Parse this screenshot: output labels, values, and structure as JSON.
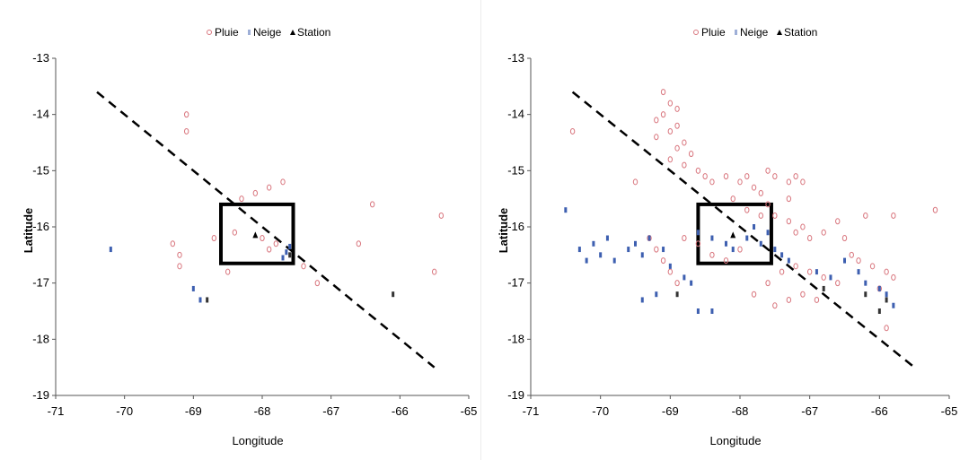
{
  "legend": {
    "rain_label": "Pluie",
    "snow_label": "Neige",
    "station_label": "Station"
  },
  "colors": {
    "rain": "#d9777f",
    "snow": "#3d5fb0",
    "station": "#000000",
    "dark_marker": "#333333",
    "dashed_line": "#000000",
    "box": "#000000"
  },
  "chart_data": [
    {
      "type": "scatter",
      "xlabel": "Longitude",
      "ylabel": "Latitude",
      "xlim": [
        -71,
        -65
      ],
      "ylim": [
        -19,
        -13
      ],
      "xticks": [
        "-71",
        "-70",
        "-69",
        "-68",
        "-67",
        "-66",
        "-65"
      ],
      "yticks": [
        "-13",
        "-14",
        "-15",
        "-16",
        "-17",
        "-18",
        "-19"
      ],
      "legend_position": "top",
      "grid": false,
      "dashed_line": {
        "from": [
          -70.4,
          -13.6
        ],
        "to": [
          -65.5,
          -18.5
        ]
      },
      "box": {
        "x": [
          -68.6,
          -67.55
        ],
        "y": [
          -16.65,
          -15.6
        ]
      },
      "series": [
        {
          "name": "Pluie",
          "marker": "circle",
          "points": [
            [
              -69.1,
              -14.0
            ],
            [
              -69.1,
              -14.3
            ],
            [
              -68.3,
              -15.5
            ],
            [
              -68.1,
              -15.4
            ],
            [
              -67.9,
              -15.3
            ],
            [
              -67.7,
              -15.2
            ],
            [
              -66.4,
              -15.6
            ],
            [
              -65.4,
              -15.8
            ],
            [
              -68.7,
              -16.2
            ],
            [
              -69.3,
              -16.3
            ],
            [
              -69.2,
              -16.5
            ],
            [
              -69.2,
              -16.7
            ],
            [
              -68.4,
              -16.1
            ],
            [
              -68.0,
              -16.2
            ],
            [
              -67.9,
              -16.4
            ],
            [
              -67.8,
              -16.3
            ],
            [
              -66.6,
              -16.3
            ],
            [
              -65.5,
              -16.8
            ],
            [
              -67.2,
              -17.0
            ],
            [
              -67.4,
              -16.7
            ],
            [
              -68.5,
              -16.8
            ]
          ]
        },
        {
          "name": "Neige",
          "marker": "cross",
          "points": [
            [
              -70.2,
              -16.4
            ],
            [
              -69.0,
              -17.1
            ],
            [
              -67.65,
              -16.45
            ],
            [
              -67.6,
              -16.35
            ],
            [
              -67.7,
              -16.55
            ],
            [
              -68.9,
              -17.3
            ]
          ]
        },
        {
          "name": "Station",
          "marker": "triangle",
          "points": [
            [
              -68.1,
              -16.15
            ]
          ]
        },
        {
          "name": "",
          "marker": "dark",
          "points": [
            [
              -66.1,
              -17.2
            ],
            [
              -68.8,
              -17.3
            ],
            [
              -67.6,
              -16.5
            ]
          ]
        }
      ]
    },
    {
      "type": "scatter",
      "xlabel": "Longitude",
      "ylabel": "Latitude",
      "xlim": [
        -71,
        -65
      ],
      "ylim": [
        -19,
        -13
      ],
      "xticks": [
        "-71",
        "-70",
        "-69",
        "-68",
        "-67",
        "-66",
        "-65"
      ],
      "yticks": [
        "-13",
        "-14",
        "-15",
        "-16",
        "-17",
        "-18",
        "-19"
      ],
      "legend_position": "top",
      "grid": false,
      "dashed_line": {
        "from": [
          -70.4,
          -13.6
        ],
        "to": [
          -65.5,
          -18.5
        ]
      },
      "box": {
        "x": [
          -68.6,
          -67.55
        ],
        "y": [
          -16.65,
          -15.6
        ]
      },
      "series": [
        {
          "name": "Pluie",
          "marker": "circle",
          "points": [
            [
              -69.1,
              -13.6
            ],
            [
              -69.0,
              -13.8
            ],
            [
              -68.9,
              -13.9
            ],
            [
              -69.1,
              -14.0
            ],
            [
              -69.2,
              -14.1
            ],
            [
              -68.9,
              -14.2
            ],
            [
              -69.0,
              -14.3
            ],
            [
              -69.2,
              -14.4
            ],
            [
              -68.8,
              -14.5
            ],
            [
              -68.9,
              -14.6
            ],
            [
              -68.7,
              -14.7
            ],
            [
              -69.0,
              -14.8
            ],
            [
              -68.8,
              -14.9
            ],
            [
              -68.6,
              -15.0
            ],
            [
              -68.5,
              -15.1
            ],
            [
              -68.4,
              -15.2
            ],
            [
              -68.2,
              -15.1
            ],
            [
              -68.0,
              -15.2
            ],
            [
              -67.8,
              -15.3
            ],
            [
              -67.9,
              -15.1
            ],
            [
              -67.6,
              -15.0
            ],
            [
              -67.5,
              -15.1
            ],
            [
              -67.3,
              -15.2
            ],
            [
              -67.2,
              -15.1
            ],
            [
              -67.1,
              -15.2
            ],
            [
              -67.7,
              -15.4
            ],
            [
              -67.6,
              -15.6
            ],
            [
              -67.3,
              -15.5
            ],
            [
              -68.1,
              -15.5
            ],
            [
              -67.9,
              -15.7
            ],
            [
              -67.7,
              -15.8
            ],
            [
              -67.5,
              -15.8
            ],
            [
              -67.3,
              -15.9
            ],
            [
              -67.2,
              -16.1
            ],
            [
              -67.1,
              -16.0
            ],
            [
              -67.0,
              -16.2
            ],
            [
              -66.8,
              -16.1
            ],
            [
              -66.6,
              -15.9
            ],
            [
              -66.5,
              -16.2
            ],
            [
              -66.4,
              -16.5
            ],
            [
              -66.3,
              -16.6
            ],
            [
              -66.1,
              -16.7
            ],
            [
              -65.9,
              -16.8
            ],
            [
              -65.8,
              -16.9
            ],
            [
              -66.2,
              -15.8
            ],
            [
              -65.8,
              -15.8
            ],
            [
              -65.2,
              -15.7
            ],
            [
              -66.0,
              -17.1
            ],
            [
              -66.6,
              -17.0
            ],
            [
              -66.8,
              -16.9
            ],
            [
              -67.0,
              -16.8
            ],
            [
              -67.2,
              -16.7
            ],
            [
              -67.4,
              -16.8
            ],
            [
              -67.6,
              -17.0
            ],
            [
              -67.8,
              -17.2
            ],
            [
              -67.5,
              -17.4
            ],
            [
              -67.3,
              -17.3
            ],
            [
              -67.1,
              -17.2
            ],
            [
              -66.9,
              -17.3
            ],
            [
              -69.5,
              -15.2
            ],
            [
              -69.3,
              -16.2
            ],
            [
              -69.2,
              -16.4
            ],
            [
              -69.1,
              -16.6
            ],
            [
              -69.0,
              -16.8
            ],
            [
              -68.9,
              -17.0
            ],
            [
              -68.8,
              -16.2
            ],
            [
              -68.6,
              -16.3
            ],
            [
              -68.4,
              -16.5
            ],
            [
              -68.2,
              -16.6
            ],
            [
              -68.0,
              -16.4
            ],
            [
              -65.9,
              -17.8
            ],
            [
              -70.4,
              -14.3
            ]
          ]
        },
        {
          "name": "Neige",
          "marker": "cross",
          "points": [
            [
              -70.5,
              -15.7
            ],
            [
              -70.3,
              -16.4
            ],
            [
              -70.2,
              -16.6
            ],
            [
              -70.1,
              -16.3
            ],
            [
              -70.0,
              -16.5
            ],
            [
              -69.9,
              -16.2
            ],
            [
              -69.8,
              -16.6
            ],
            [
              -69.6,
              -16.4
            ],
            [
              -69.5,
              -16.3
            ],
            [
              -69.4,
              -16.5
            ],
            [
              -69.3,
              -16.2
            ],
            [
              -69.1,
              -16.4
            ],
            [
              -69.0,
              -16.7
            ],
            [
              -68.8,
              -16.9
            ],
            [
              -68.7,
              -17.0
            ],
            [
              -68.6,
              -16.1
            ],
            [
              -68.4,
              -16.2
            ],
            [
              -68.2,
              -16.3
            ],
            [
              -68.1,
              -16.4
            ],
            [
              -67.9,
              -16.2
            ],
            [
              -67.8,
              -16.0
            ],
            [
              -67.7,
              -16.3
            ],
            [
              -67.6,
              -16.1
            ],
            [
              -67.5,
              -16.4
            ],
            [
              -67.4,
              -16.5
            ],
            [
              -67.3,
              -16.6
            ],
            [
              -66.9,
              -16.8
            ],
            [
              -66.7,
              -16.9
            ],
            [
              -66.5,
              -16.6
            ],
            [
              -66.3,
              -16.8
            ],
            [
              -66.2,
              -17.0
            ],
            [
              -66.0,
              -17.1
            ],
            [
              -65.9,
              -17.2
            ],
            [
              -65.8,
              -17.4
            ],
            [
              -68.6,
              -17.5
            ],
            [
              -68.4,
              -17.5
            ],
            [
              -69.2,
              -17.2
            ],
            [
              -69.4,
              -17.3
            ]
          ]
        },
        {
          "name": "Station",
          "marker": "triangle",
          "points": [
            [
              -68.1,
              -16.15
            ]
          ]
        },
        {
          "name": "",
          "marker": "dark",
          "points": [
            [
              -66.8,
              -17.1
            ],
            [
              -66.2,
              -17.2
            ],
            [
              -65.9,
              -17.3
            ],
            [
              -66.0,
              -17.5
            ],
            [
              -68.9,
              -17.2
            ]
          ]
        }
      ]
    }
  ]
}
